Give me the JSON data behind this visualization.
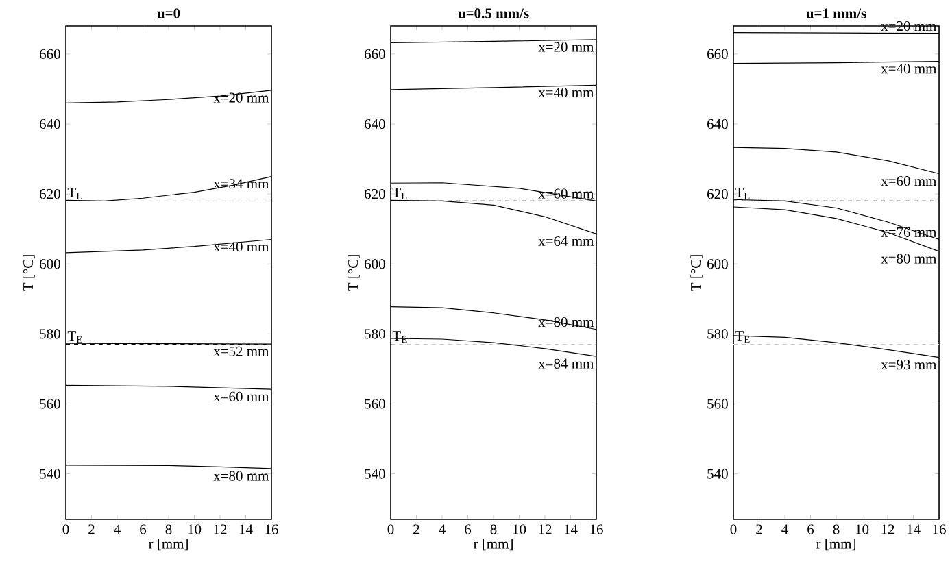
{
  "chart_data": [
    {
      "type": "line",
      "title": "u=0",
      "xlabel": "r [mm]",
      "ylabel": "T [°C]",
      "xlim": [
        0,
        16
      ],
      "ylim": [
        527,
        668
      ],
      "xticks": [
        0,
        2,
        4,
        6,
        8,
        10,
        12,
        14,
        16
      ],
      "yticks": [
        540,
        560,
        580,
        600,
        620,
        640,
        660
      ],
      "series": [
        {
          "name": "x=20 mm",
          "color": "#000000",
          "x": [
            0,
            4,
            8,
            12,
            16
          ],
          "values": [
            646,
            646.3,
            647,
            648,
            649.6
          ]
        },
        {
          "name": "x=34 mm",
          "color": "#000000",
          "x": [
            0,
            3,
            6,
            10,
            13,
            16
          ],
          "values": [
            618.2,
            618,
            618.8,
            620.5,
            622.5,
            625
          ]
        },
        {
          "name": "x=40 mm",
          "color": "#000000",
          "x": [
            0,
            6,
            10,
            16
          ],
          "values": [
            603.2,
            604,
            605,
            607
          ]
        },
        {
          "name": "x=52 mm",
          "color": "#000000",
          "x": [
            0,
            8,
            16
          ],
          "values": [
            577.3,
            577.2,
            577.1
          ]
        },
        {
          "name": "x=60 mm",
          "color": "#000000",
          "x": [
            0,
            8,
            16
          ],
          "values": [
            565.3,
            565,
            564.2
          ]
        },
        {
          "name": "x=80 mm",
          "color": "#000000",
          "x": [
            0,
            8,
            12,
            16
          ],
          "values": [
            542.5,
            542.4,
            542,
            541.5
          ]
        }
      ],
      "ref_lines": [
        {
          "axis": "y",
          "value": 618,
          "label": "T$_{L}$",
          "color": "#c8c8c8",
          "line_style": "dashed"
        },
        {
          "axis": "y",
          "value": 577,
          "label": "T$_{E}$",
          "color": "#000000",
          "line_style": "dashed"
        }
      ]
    },
    {
      "type": "line",
      "title": "u=0.5 mm/s",
      "xlabel": "r [mm]",
      "ylabel": "T [°C]",
      "xlim": [
        0,
        16
      ],
      "ylim": [
        527,
        668
      ],
      "xticks": [
        0,
        2,
        4,
        6,
        8,
        10,
        12,
        14,
        16
      ],
      "yticks": [
        540,
        560,
        580,
        600,
        620,
        640,
        660
      ],
      "series": [
        {
          "name": "x=20 mm",
          "color": "#000000",
          "x": [
            0,
            8,
            16
          ],
          "values": [
            663.2,
            663.6,
            664.1
          ]
        },
        {
          "name": "x=40 mm",
          "color": "#000000",
          "x": [
            0,
            8,
            16
          ],
          "values": [
            649.8,
            650.4,
            651.1
          ]
        },
        {
          "name": "x=60 mm",
          "color": "#000000",
          "x": [
            0,
            4,
            10,
            16
          ],
          "values": [
            623.1,
            623.2,
            621.6,
            618
          ]
        },
        {
          "name": "x=64 mm",
          "color": "#000000",
          "x": [
            0,
            4,
            8,
            12,
            16
          ],
          "values": [
            618.2,
            618,
            616.8,
            613.5,
            608.6
          ]
        },
        {
          "name": "x=80 mm",
          "color": "#000000",
          "x": [
            0,
            4,
            8,
            12,
            16
          ],
          "values": [
            587.8,
            587.5,
            586,
            584,
            581.3
          ]
        },
        {
          "name": "x=84 mm",
          "color": "#000000",
          "x": [
            0,
            4,
            8,
            12,
            16
          ],
          "values": [
            578.7,
            578.5,
            577.5,
            575.8,
            573.6
          ]
        }
      ],
      "ref_lines": [
        {
          "axis": "y",
          "value": 618,
          "label": "T$_{L}$",
          "color": "#000000",
          "line_style": "dashed"
        },
        {
          "axis": "y",
          "value": 577,
          "label": "T$_{E}$",
          "color": "#c8c8c8",
          "line_style": "dashed"
        }
      ]
    },
    {
      "type": "line",
      "title": "u=1 mm/s",
      "xlabel": "r [mm]",
      "ylabel": "T [°C]",
      "xlim": [
        0,
        16
      ],
      "ylim": [
        527,
        668
      ],
      "xticks": [
        0,
        2,
        4,
        6,
        8,
        10,
        12,
        14,
        16
      ],
      "yticks": [
        540,
        560,
        580,
        600,
        620,
        640,
        660
      ],
      "series": [
        {
          "name": "x=20 mm",
          "color": "#000000",
          "x": [
            0,
            8,
            16
          ],
          "values": [
            666.1,
            666,
            665.9
          ]
        },
        {
          "name": "x=40 mm",
          "color": "#000000",
          "x": [
            0,
            8,
            16
          ],
          "values": [
            657.3,
            657.5,
            657.9
          ]
        },
        {
          "name": "x=60 mm",
          "color": "#000000",
          "x": [
            0,
            4,
            8,
            12,
            16
          ],
          "values": [
            633.3,
            633,
            632,
            629.5,
            625.8
          ]
        },
        {
          "name": "x=76 mm",
          "color": "#000000",
          "x": [
            0,
            4,
            8,
            12,
            16
          ],
          "values": [
            618.4,
            618,
            616,
            612,
            607
          ]
        },
        {
          "name": "x=80 mm",
          "color": "#000000",
          "x": [
            0,
            4,
            8,
            12,
            16
          ],
          "values": [
            616.3,
            615.5,
            613,
            609,
            603.6
          ]
        },
        {
          "name": "x=93 mm",
          "color": "#000000",
          "x": [
            0,
            4,
            8,
            12,
            16
          ],
          "values": [
            579.5,
            579,
            577.5,
            575.5,
            573.3
          ]
        }
      ],
      "ref_lines": [
        {
          "axis": "y",
          "value": 618,
          "label": "T$_{L}$",
          "color": "#000000",
          "line_style": "dashed"
        },
        {
          "axis": "y",
          "value": 577,
          "label": "T$_{E}$",
          "color": "#c8c8c8",
          "line_style": "dashed"
        }
      ]
    }
  ]
}
